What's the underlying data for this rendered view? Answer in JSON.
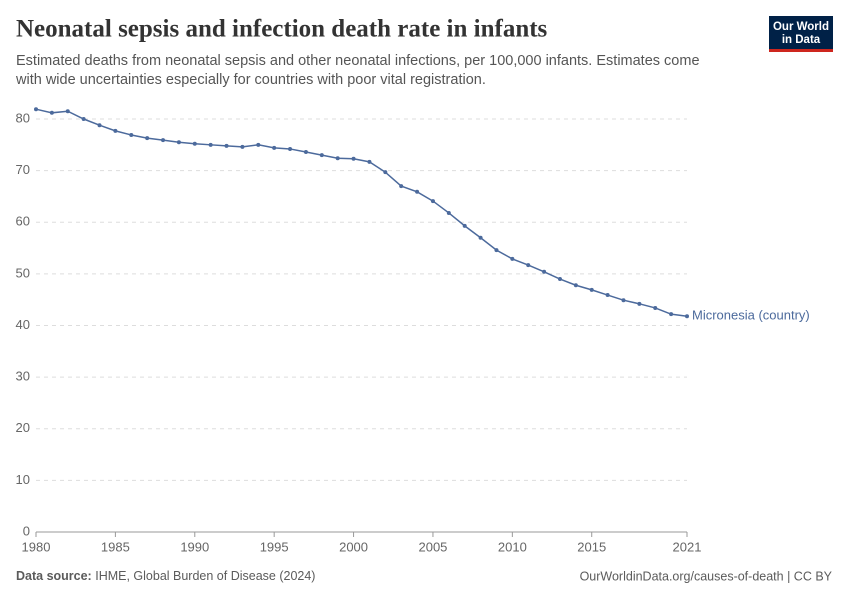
{
  "chart_data": {
    "type": "line",
    "title": "Neonatal sepsis and infection death rate in infants",
    "subtitle": [
      "Estimated deaths from neonatal sepsis and other neonatal infections, per 100,000 infants. Estimates come",
      "with wide uncertainties especially for countries with poor vital registration."
    ],
    "x": [
      1980,
      1981,
      1982,
      1983,
      1984,
      1985,
      1986,
      1987,
      1988,
      1989,
      1990,
      1991,
      1992,
      1993,
      1994,
      1995,
      1996,
      1997,
      1998,
      1999,
      2000,
      2001,
      2002,
      2003,
      2004,
      2005,
      2006,
      2007,
      2008,
      2009,
      2010,
      2011,
      2012,
      2013,
      2014,
      2015,
      2016,
      2017,
      2018,
      2019,
      2020,
      2021
    ],
    "series": [
      {
        "name": "Micronesia (country)",
        "color": "#4c6a9c",
        "values": [
          81.9,
          81.2,
          81.5,
          80.0,
          78.8,
          77.7,
          76.9,
          76.3,
          75.9,
          75.5,
          75.2,
          75.0,
          74.8,
          74.6,
          75.0,
          74.4,
          74.2,
          73.6,
          73.0,
          72.4,
          72.3,
          71.7,
          69.7,
          67.0,
          65.9,
          64.1,
          61.8,
          59.3,
          57.0,
          54.6,
          52.9,
          51.7,
          50.4,
          49.0,
          47.8,
          46.9,
          45.9,
          44.9,
          44.2,
          43.4,
          42.2,
          41.8
        ]
      }
    ],
    "xlim": [
      1980,
      2021
    ],
    "xticks": [
      1980,
      1985,
      1990,
      1995,
      2000,
      2005,
      2010,
      2015,
      2021
    ],
    "ylim": [
      0,
      80
    ],
    "yticks": [
      0,
      10,
      20,
      30,
      40,
      50,
      60,
      70,
      80
    ],
    "grid": true
  },
  "logo": [
    "Our World",
    "in Data"
  ],
  "footer": {
    "source_label": "Data source:",
    "source": "IHME, Global Burden of Disease (2024)",
    "url": "OurWorldinData.org/causes-of-death | CC BY"
  }
}
